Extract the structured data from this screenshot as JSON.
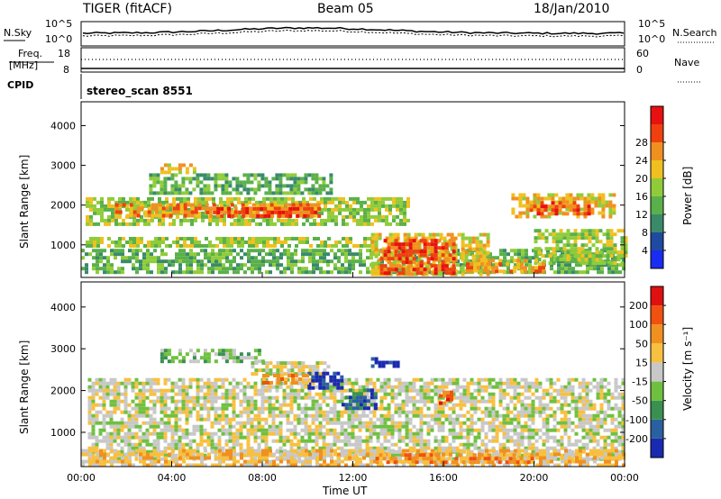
{
  "header": {
    "radar": "TIGER (fitACF)",
    "beam": "Beam 05",
    "date": "18/Jan/2010"
  },
  "noise_panel": {
    "left_label": "N.Sky",
    "right_label": "N.Search",
    "y_ticks": [
      "10^5",
      "10^0"
    ]
  },
  "freq_panel": {
    "left_label_1": "Freq.",
    "left_label_2": "[MHz]",
    "right_label": "Nave",
    "left_ticks": [
      "18",
      "8"
    ],
    "right_ticks": [
      "60",
      "0"
    ]
  },
  "cpid": {
    "label": "CPID",
    "value": "stereo_scan 8551"
  },
  "chart_data": [
    {
      "type": "heatmap",
      "name": "power",
      "ylabel": "Slant Range [km]",
      "xlabel": "",
      "y_ticks": [
        1000,
        2000,
        3000,
        4000
      ],
      "ylim": [
        180,
        4600
      ],
      "xlim": [
        0,
        24
      ],
      "colorbar": {
        "label": "Power [dB]",
        "ticks": [
          "4",
          "8",
          "12",
          "16",
          "20",
          "24",
          "28"
        ],
        "colors": [
          "#1a2cf0",
          "#1f4aa0",
          "#3a8a6a",
          "#5ab04a",
          "#90cc3a",
          "#f0c020",
          "#f09020",
          "#f04010",
          "#e81010"
        ]
      },
      "regions": [
        {
          "x0": 0.0,
          "x1": 24.0,
          "y0": 300,
          "y1": 900,
          "v": 3
        },
        {
          "x0": 0.2,
          "x1": 13.0,
          "y0": 1000,
          "y1": 1200,
          "v": 4
        },
        {
          "x0": 0.2,
          "x1": 14.5,
          "y0": 1500,
          "y1": 2200,
          "v": 4
        },
        {
          "x0": 1.5,
          "x1": 10.5,
          "y0": 1700,
          "y1": 2050,
          "v": 6
        },
        {
          "x0": 5.5,
          "x1": 10.5,
          "y0": 1700,
          "y1": 1950,
          "v": 7
        },
        {
          "x0": 3.0,
          "x1": 11.0,
          "y0": 2300,
          "y1": 2800,
          "v": 3
        },
        {
          "x0": 3.5,
          "x1": 5.0,
          "y0": 2800,
          "y1": 3050,
          "v": 5
        },
        {
          "x0": 12.8,
          "x1": 18.0,
          "y0": 250,
          "y1": 1300,
          "v": 5
        },
        {
          "x0": 13.2,
          "x1": 16.5,
          "y0": 250,
          "y1": 1150,
          "v": 7
        },
        {
          "x0": 19.0,
          "x1": 23.5,
          "y0": 1700,
          "y1": 2300,
          "v": 5
        },
        {
          "x0": 19.8,
          "x1": 22.5,
          "y0": 1800,
          "y1": 2100,
          "v": 7
        },
        {
          "x0": 20.0,
          "x1": 24.0,
          "y0": 500,
          "y1": 1400,
          "v": 4
        },
        {
          "x0": 17.0,
          "x1": 20.5,
          "y0": 300,
          "y1": 650,
          "v": 6
        }
      ]
    },
    {
      "type": "heatmap",
      "name": "velocity",
      "ylabel": "Slant Range [km]",
      "xlabel": "Time UT",
      "x_ticks": [
        "00:00",
        "04:00",
        "08:00",
        "12:00",
        "16:00",
        "20:00",
        "00:00"
      ],
      "y_ticks": [
        1000,
        2000,
        3000,
        4000
      ],
      "ylim": [
        180,
        4600
      ],
      "xlim": [
        0,
        24
      ],
      "colorbar": {
        "label": "Velocity [m s⁻¹]",
        "ticks": [
          "200",
          "100",
          "50",
          "15",
          "-15",
          "-50",
          "-100",
          "-200"
        ],
        "colors": [
          "#1a2ab0",
          "#2a60a0",
          "#3a9050",
          "#70c040",
          "#c8c8c8",
          "#f8c040",
          "#f09020",
          "#f05010",
          "#e01010"
        ]
      },
      "regions": [
        {
          "x0": 0.3,
          "x1": 24.0,
          "y0": 400,
          "y1": 2300,
          "v": 4
        },
        {
          "x0": 0.0,
          "x1": 24.0,
          "y0": 250,
          "y1": 600,
          "v": 5
        },
        {
          "x0": 3.5,
          "x1": 8.0,
          "y0": 2700,
          "y1": 3000,
          "v": 3
        },
        {
          "x0": 7.5,
          "x1": 11.0,
          "y0": 2400,
          "y1": 2700,
          "v": 4
        },
        {
          "x0": 10.0,
          "x1": 11.5,
          "y0": 2050,
          "y1": 2450,
          "v": 0
        },
        {
          "x0": 11.5,
          "x1": 13.0,
          "y0": 1600,
          "y1": 2050,
          "v": 1
        },
        {
          "x0": 12.8,
          "x1": 14.0,
          "y0": 2550,
          "y1": 2800,
          "v": 0
        },
        {
          "x0": 13.0,
          "x1": 20.0,
          "y0": 250,
          "y1": 500,
          "v": 6
        },
        {
          "x0": 15.8,
          "x1": 16.4,
          "y0": 1700,
          "y1": 2000,
          "v": 7
        },
        {
          "x0": 8.0,
          "x1": 10.0,
          "y0": 2150,
          "y1": 2400,
          "v": 6
        }
      ]
    }
  ]
}
